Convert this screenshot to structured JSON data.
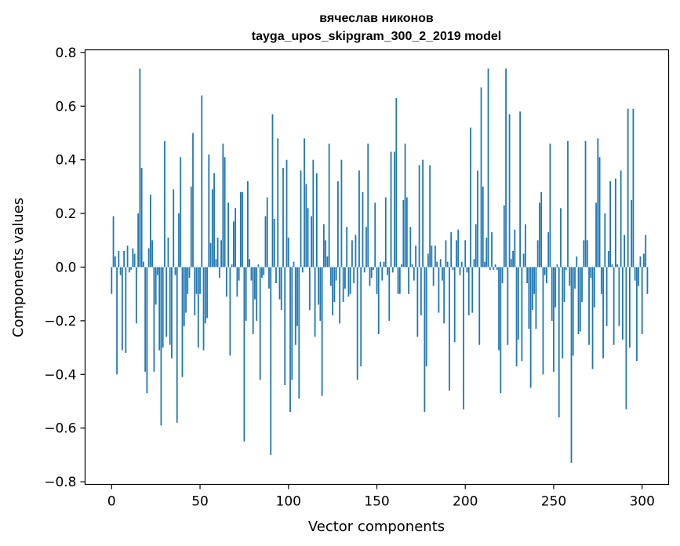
{
  "chart_data": {
    "type": "bar",
    "title": "вячеслав никонов",
    "subtitle": "tayga_upos_skipgram_300_2_2019 model",
    "xlabel": "Vector components",
    "ylabel": "Components values",
    "xlim": [
      -15,
      315
    ],
    "ylim": [
      -0.81,
      0.81
    ],
    "xticks": [
      0,
      50,
      100,
      150,
      200,
      250,
      300
    ],
    "xtick_labels": [
      "0",
      "50",
      "100",
      "150",
      "200",
      "250",
      "300"
    ],
    "yticks": [
      0.8,
      0.6,
      0.4,
      0.2,
      0.0,
      -0.2,
      -0.4,
      -0.6,
      -0.8
    ],
    "ytick_labels": [
      "0.8",
      "0.6",
      "0.4",
      "0.2",
      "0.0",
      "−0.2",
      "−0.4",
      "−0.6",
      "−0.8"
    ],
    "grid": false,
    "colors": {
      "bar": "#1f77b4"
    },
    "values": [
      -0.1,
      0.19,
      0.04,
      -0.4,
      0.06,
      -0.03,
      -0.31,
      0.06,
      -0.32,
      0.08,
      -0.02,
      -0.01,
      0.07,
      0.05,
      -0.21,
      0.2,
      0.74,
      0.37,
      0.02,
      -0.39,
      -0.47,
      0.07,
      0.27,
      0.1,
      -0.39,
      -0.14,
      -0.03,
      -0.31,
      -0.59,
      -0.3,
      0.47,
      -0.26,
      0.11,
      -0.29,
      -0.34,
      0.29,
      -0.03,
      -0.58,
      0.2,
      0.41,
      -0.41,
      -0.22,
      -0.17,
      -0.1,
      -0.04,
      0.3,
      0.5,
      -0.18,
      -0.1,
      -0.3,
      -0.1,
      0.64,
      -0.31,
      -0.21,
      -0.19,
      0.42,
      0.09,
      0.29,
      0.35,
      0.03,
      0.11,
      -0.04,
      0.1,
      0.46,
      0.41,
      -0.11,
      0.24,
      -0.33,
      0.01,
      0.17,
      0.22,
      -0.11,
      -0.05,
      0.28,
      0.28,
      -0.65,
      -0.2,
      0.32,
      0.03,
      -0.05,
      -0.25,
      -0.12,
      -0.2,
      0.01,
      -0.42,
      -0.04,
      -0.03,
      0.19,
      0.26,
      -0.08,
      -0.7,
      0.57,
      0.18,
      -0.06,
      0.48,
      -0.12,
      -0.16,
      0.37,
      -0.44,
      0.4,
      0.11,
      -0.54,
      -0.42,
      0.02,
      -0.29,
      -0.22,
      -0.49,
      0.36,
      -0.02,
      0.48,
      0.31,
      0.22,
      -0.16,
      0.19,
      0.4,
      -0.26,
      0.35,
      -0.14,
      -0.2,
      -0.48,
      0.16,
      0.1,
      0.04,
      0.46,
      -0.07,
      -0.18,
      -0.13,
      -0.05,
      0.32,
      -0.21,
      0.4,
      -0.13,
      -0.08,
      0.15,
      -0.11,
      -0.1,
      0.1,
      -0.06,
      0.12,
      -0.42,
      0.36,
      -0.37,
      0.28,
      -0.02,
      0.15,
      0.46,
      -0.07,
      -0.04,
      -0.01,
      0.24,
      -0.1,
      -0.25,
      0.02,
      -0.05,
      0.02,
      0.26,
      -0.03,
      -0.2,
      0.43,
      -0.02,
      0.43,
      0.63,
      -0.1,
      -0.1,
      0.01,
      0.25,
      0.46,
      0.26,
      -0.1,
      0.15,
      0.01,
      -0.05,
      0.08,
      -0.26,
      0.38,
      -0.18,
      0.4,
      -0.54,
      -0.37,
      0.05,
      0.38,
      0.08,
      -0.07,
      0.08,
      0.02,
      -0.17,
      0.03,
      -0.05,
      -0.21,
      0.1,
      0.02,
      -0.46,
      0.13,
      -0.01,
      -0.28,
      0.1,
      0.14,
      -0.03,
      0.02,
      -0.53,
      0.1,
      -0.02,
      -0.18,
      0.52,
      -0.17,
      0.03,
      0.16,
      0.36,
      -0.29,
      0.67,
      0.3,
      0.02,
      0.11,
      0.74,
      -0.01,
      0.13,
      -0.01,
      0.01,
      -0.01,
      -0.31,
      -0.47,
      -0.06,
      0.23,
      0.74,
      -0.29,
      0.57,
      0.03,
      0.06,
      0.14,
      -0.37,
      -0.27,
      0.58,
      -0.35,
      0.05,
      0.16,
      -0.06,
      -0.23,
      -0.45,
      -0.16,
      -0.1,
      -0.23,
      0.1,
      0.24,
      0.28,
      -0.4,
      -0.03,
      -0.06,
      0.13,
      0.46,
      -0.2,
      -0.39,
      -0.15,
      0.01,
      -0.56,
      0.22,
      -0.34,
      -0.13,
      -0.01,
      0.47,
      -0.07,
      -0.73,
      -0.33,
      -0.08,
      0.04,
      -0.25,
      -0.24,
      -0.13,
      0.1,
      0.47,
      0.1,
      -0.29,
      -0.04,
      -0.38,
      -0.15,
      0.24,
      0.48,
      0.41,
      -0.1,
      -0.34,
      0.2,
      -0.22,
      0.06,
      0.32,
      0.01,
      -0.29,
      0.33,
      0.01,
      -0.22,
      0.36,
      -0.27,
      0.12,
      -0.53,
      0.59,
      -0.3,
      0.25,
      0.59,
      -0.05,
      -0.35,
      -0.07,
      0.04,
      -0.25,
      0.05,
      0.12,
      -0.1
    ]
  }
}
